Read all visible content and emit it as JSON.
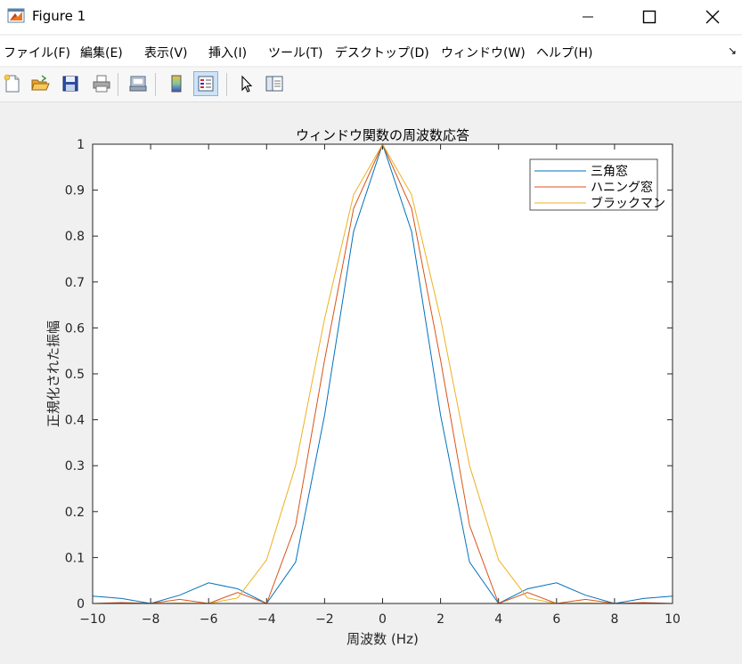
{
  "window": {
    "title": "Figure 1"
  },
  "menu": {
    "items": [
      "ファイル(F)",
      "編集(E)",
      "表示(V)",
      "挿入(I)",
      "ツール(T)",
      "デスクトップ(D)",
      "ウィンドウ(W)",
      "ヘルプ(H)"
    ]
  },
  "toolbar": {
    "buttons": [
      "new-figure-icon",
      "open-file-icon",
      "save-icon",
      "print-icon",
      "print-preview-icon",
      "colorbar-icon",
      "legend-icon",
      "pointer-icon",
      "property-inspector-icon"
    ]
  },
  "chart_data": {
    "type": "line",
    "title": "ウィンドウ関数の周波数応答",
    "xlabel": "周波数 (Hz)",
    "ylabel": "正規化された振幅",
    "xlim": [
      -10,
      10
    ],
    "ylim": [
      0,
      1
    ],
    "xticks": [
      "−10",
      "−8",
      "−6",
      "−4",
      "−2",
      "0",
      "2",
      "4",
      "6",
      "8",
      "10"
    ],
    "yticks": [
      "0",
      "0.1",
      "0.2",
      "0.3",
      "0.4",
      "0.5",
      "0.6",
      "0.7",
      "0.8",
      "0.9",
      "1"
    ],
    "grid": false,
    "legend_position": "top-right",
    "x": [
      -10,
      -9,
      -8,
      -7,
      -6,
      -5,
      -4,
      -3,
      -2,
      -1,
      0,
      1,
      2,
      3,
      4,
      5,
      6,
      7,
      8,
      9,
      10
    ],
    "series": [
      {
        "name": "三角窓",
        "color": "#0072bd",
        "values": [
          0.016,
          0.011,
          0.0,
          0.018,
          0.045,
          0.032,
          0.0,
          0.09,
          0.41,
          0.81,
          1.0,
          0.81,
          0.41,
          0.09,
          0.0,
          0.032,
          0.045,
          0.018,
          0.0,
          0.011,
          0.016
        ]
      },
      {
        "name": "ハニング窓",
        "color": "#d95319",
        "values": [
          0.0,
          0.002,
          0.0,
          0.009,
          0.0,
          0.024,
          0.0,
          0.17,
          0.53,
          0.86,
          1.0,
          0.86,
          0.53,
          0.17,
          0.0,
          0.024,
          0.0,
          0.009,
          0.0,
          0.002,
          0.0
        ]
      },
      {
        "name": "ブラックマン",
        "color": "#edb120",
        "values": [
          0.0,
          0.0,
          0.0,
          0.001,
          0.0,
          0.012,
          0.095,
          0.3,
          0.62,
          0.89,
          1.0,
          0.89,
          0.62,
          0.3,
          0.095,
          0.012,
          0.0,
          0.001,
          0.0,
          0.0,
          0.0
        ]
      }
    ]
  }
}
